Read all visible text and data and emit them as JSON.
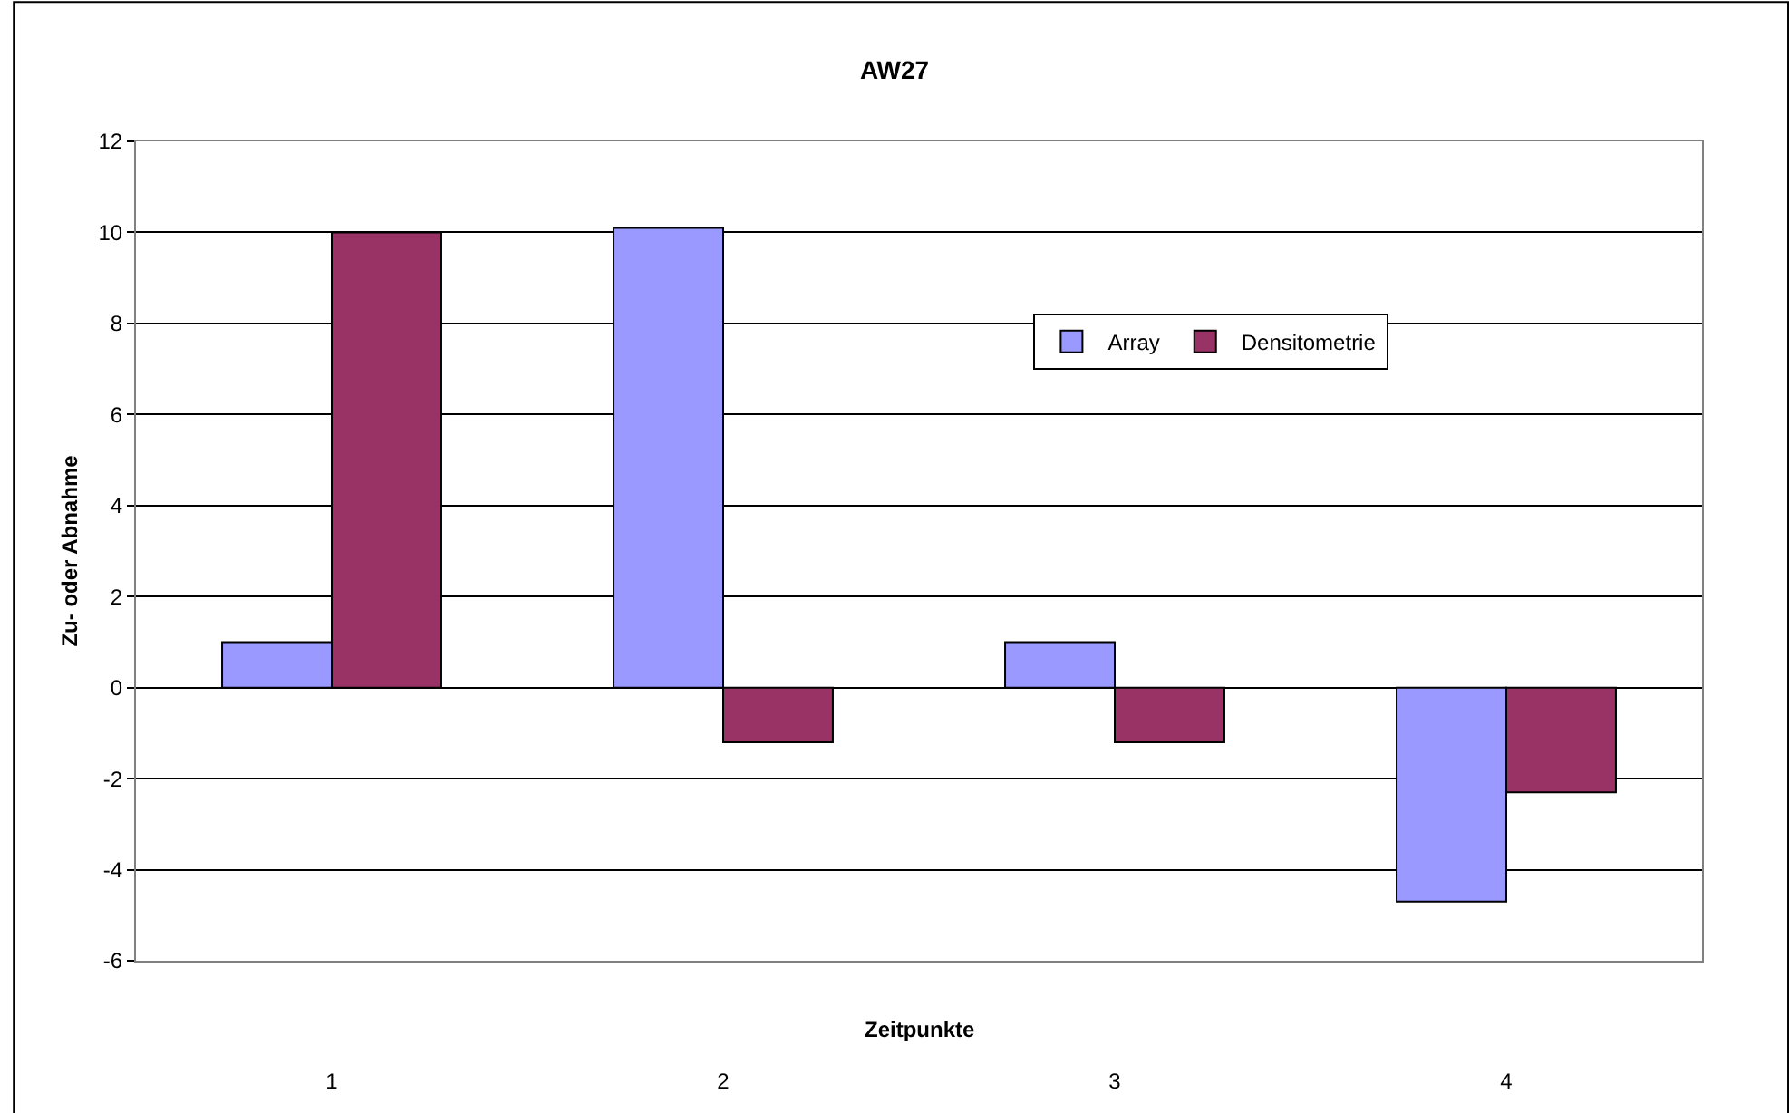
{
  "chart_data": {
    "type": "bar",
    "title": "AW27",
    "xlabel": "Zeitpunkte",
    "ylabel": "Zu- oder Abnahme",
    "categories": [
      "1",
      "2",
      "3",
      "4"
    ],
    "series": [
      {
        "name": "Array",
        "color": "#9999ff",
        "values": [
          1,
          10.1,
          1,
          -4.7
        ]
      },
      {
        "name": "Densitometrie",
        "color": "#993366",
        "values": [
          10,
          -1.2,
          -1.2,
          -2.3
        ]
      }
    ],
    "ylim": [
      -6,
      12
    ],
    "yticks": [
      -6,
      -4,
      -2,
      0,
      2,
      4,
      6,
      8,
      10,
      12
    ],
    "grid": "y",
    "legend": "top right"
  }
}
